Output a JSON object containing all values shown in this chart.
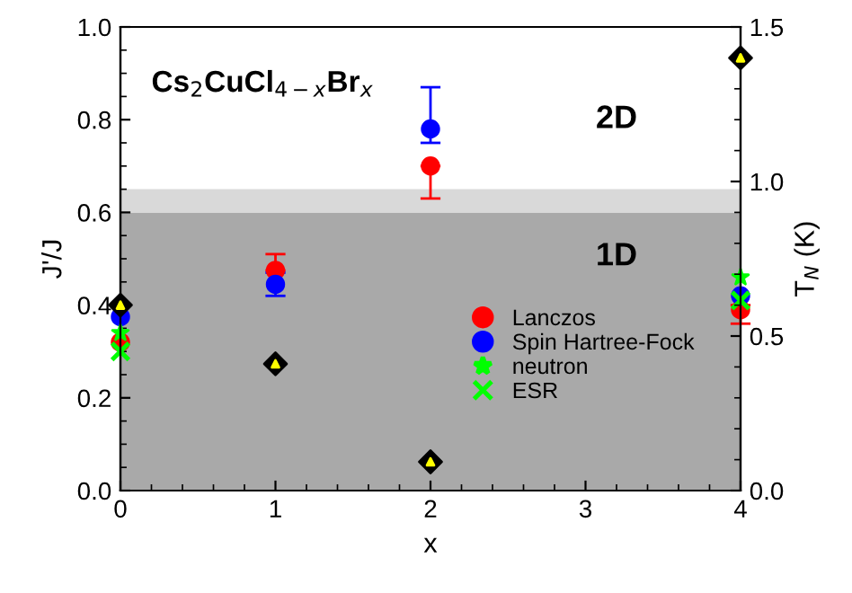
{
  "chart_data": {
    "type": "scatter",
    "xlabel": "x",
    "ylabel": "J'/J",
    "y2label": "T$_{N}$ (K)",
    "x": [
      0,
      1,
      2,
      4
    ],
    "series": [
      {
        "name": "Lanczos",
        "color": "#ff0000",
        "marker": "circle",
        "values": [
          0.32,
          0.475,
          0.7,
          0.39
        ],
        "errors": [
          null,
          [
            0.475,
            0.51
          ],
          [
            0.63,
            0.7
          ],
          [
            0.36,
            0.4
          ]
        ]
      },
      {
        "name": "Spin Hartree-Fock",
        "color": "#0000ff",
        "marker": "circle",
        "values": [
          0.375,
          0.445,
          0.78,
          0.42
        ],
        "errors": [
          null,
          [
            0.42,
            0.47
          ],
          [
            0.75,
            0.87
          ],
          null
        ]
      },
      {
        "name": "neutron",
        "color": "#00ff00",
        "marker": "star",
        "values": [
          0.34,
          null,
          null,
          0.46
        ]
      },
      {
        "name": "ESR",
        "color": "#00ff00",
        "marker": "cross",
        "values": [
          0.3,
          null,
          null,
          0.41
        ]
      },
      {
        "color": "#000000",
        "marker": "diamond",
        "axis": "y2",
        "values": [
          0.6,
          0.41,
          0.093,
          1.4
        ]
      }
    ],
    "xlim": [
      0,
      4
    ],
    "xticks": [
      0,
      1,
      2,
      3,
      4
    ],
    "ylim": [
      0,
      1.0
    ],
    "yticks": [
      {
        "value": 0,
        "label": "0.0"
      },
      0.2,
      0.4,
      0.6,
      0.8,
      {
        "value": 1.0,
        "label": "1.0"
      }
    ],
    "y2lim": [
      0,
      1.5
    ],
    "y2ticks": [
      {
        "value": 0,
        "label": "0.0"
      },
      0.5,
      {
        "value": 1.0,
        "label": "1.0"
      },
      1.5
    ],
    "bands": [
      {
        "axis": "y",
        "from": 0,
        "to": 0.6,
        "label": "1D",
        "color": "#a9a9a9"
      },
      {
        "axis": "y",
        "from": 0.6,
        "to": 0.65,
        "color": "#d9d9d9"
      }
    ],
    "annotations": [
      "Cs$_{2}$CuCl$_{4−x}$Br$_{x}$",
      "2D"
    ],
    "legend": "bottom right",
    "grid": false
  }
}
